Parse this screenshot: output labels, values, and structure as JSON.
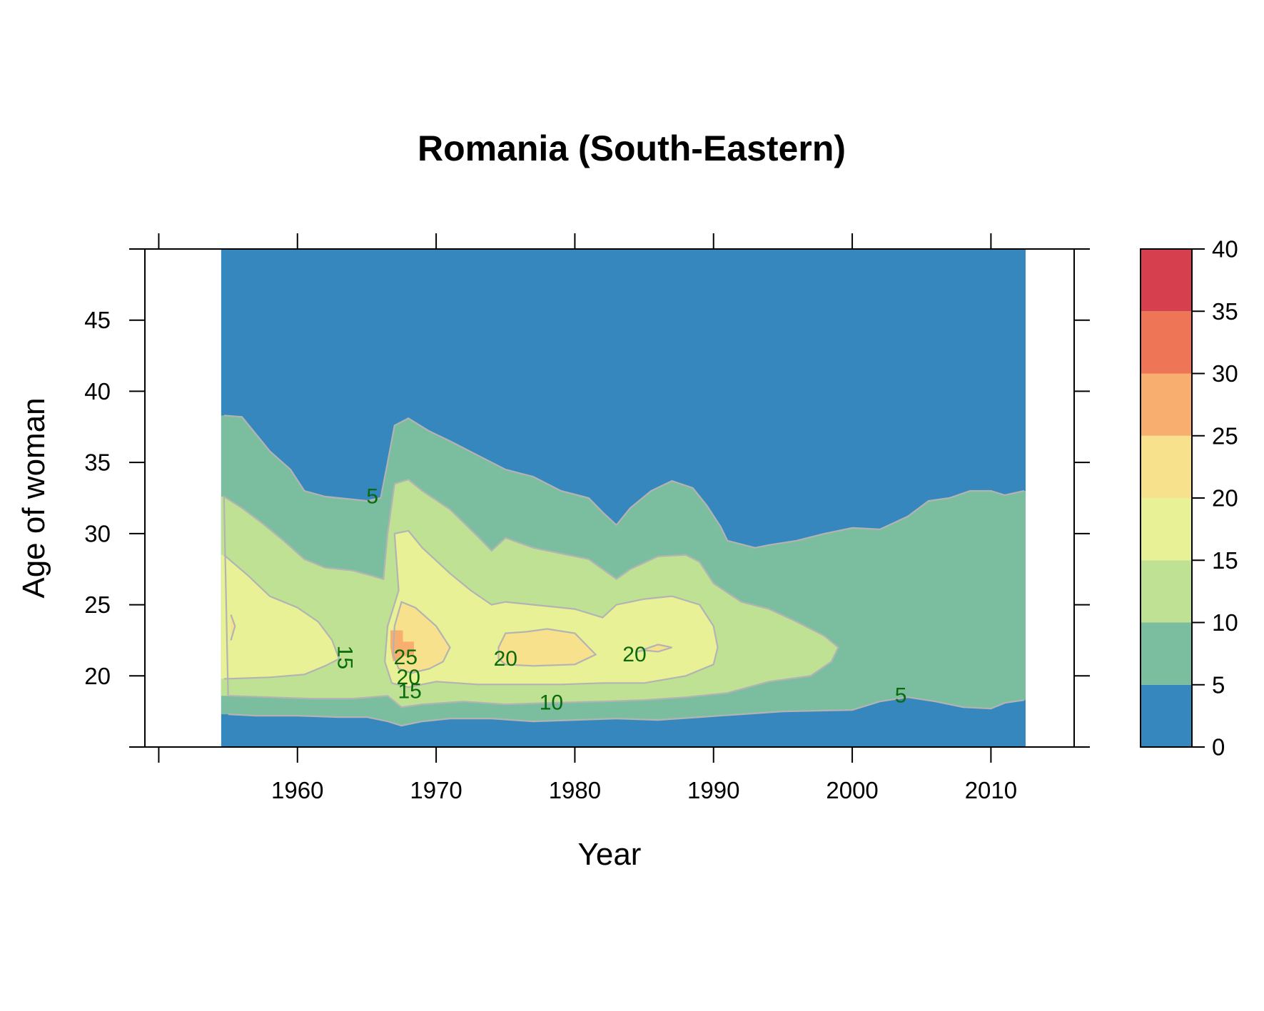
{
  "chart_data": {
    "type": "heatmap",
    "title": "Romania (South-Eastern)",
    "xlabel": "Year",
    "ylabel": "Age of woman",
    "xlim": [
      1949,
      2016
    ],
    "ylim": [
      15,
      50
    ],
    "x_ticks": [
      "1960",
      "1970",
      "1980",
      "1990",
      "2000",
      "2010"
    ],
    "y_ticks": [
      "20",
      "25",
      "30",
      "35",
      "40",
      "45"
    ],
    "colorbar": {
      "breaks": [
        0,
        5,
        10,
        15,
        20,
        25,
        30,
        35,
        40
      ],
      "tick_labels": [
        "0",
        "5",
        "10",
        "15",
        "20",
        "25",
        "30",
        "35",
        "40"
      ],
      "colors": [
        "#3587be",
        "#7bbe9f",
        "#bee194",
        "#e8f196",
        "#f8e18d",
        "#f7ae6e",
        "#ee7556",
        "#d53f4e"
      ]
    },
    "data_extent": {
      "year": [
        1954.5,
        2012.5
      ],
      "age": [
        15,
        50
      ]
    },
    "region_colors_note": "low/high values",
    "region_colors": {
      "background": "#3587be",
      "band_5": "#7bbe9f",
      "band_10": "#bee194",
      "band_15": "#e8f196",
      "band_20": "#f8e18d",
      "band_25": "#f7ae6e"
    },
    "contours": [
      {
        "level": 5,
        "points": [
          [
            1954.7,
            38.3
          ],
          [
            1956,
            38.2
          ],
          [
            1957,
            37
          ],
          [
            1958,
            35.8
          ],
          [
            1959.5,
            34.5
          ],
          [
            1960.5,
            33
          ],
          [
            1962,
            32.6
          ],
          [
            1964,
            32.4
          ],
          [
            1965,
            32.3
          ],
          [
            1966,
            32.5
          ],
          [
            1966.5,
            35
          ],
          [
            1967,
            37.6
          ],
          [
            1968,
            38.1
          ],
          [
            1969.5,
            37.2
          ],
          [
            1971,
            36.5
          ],
          [
            1973,
            35.5
          ],
          [
            1975,
            34.5
          ],
          [
            1977,
            34
          ],
          [
            1979,
            33
          ],
          [
            1981,
            32.5
          ],
          [
            1982,
            31.5
          ],
          [
            1983,
            30.6
          ],
          [
            1984,
            31.8
          ],
          [
            1985.5,
            33
          ],
          [
            1987,
            33.7
          ],
          [
            1988.5,
            33.2
          ],
          [
            1989.5,
            32
          ],
          [
            1990.5,
            30.5
          ],
          [
            1991,
            29.5
          ],
          [
            1993,
            29
          ],
          [
            1994,
            29.2
          ],
          [
            1996,
            29.5
          ],
          [
            1998,
            30
          ],
          [
            2000,
            30.4
          ],
          [
            2002,
            30.3
          ],
          [
            2004,
            31.2
          ],
          [
            2005.5,
            32.3
          ],
          [
            2007,
            32.5
          ],
          [
            2008.5,
            33
          ],
          [
            2010,
            33
          ],
          [
            2011,
            32.7
          ],
          [
            2012.4,
            33
          ]
        ]
      },
      {
        "level": 5,
        "points": [
          [
            1955,
            17.3
          ],
          [
            1957,
            17.2
          ],
          [
            1960,
            17.2
          ],
          [
            1963,
            17.1
          ],
          [
            1965,
            17.1
          ],
          [
            1966.5,
            16.8
          ],
          [
            1967.5,
            16.5
          ],
          [
            1969,
            16.8
          ],
          [
            1971,
            17
          ],
          [
            1974,
            17
          ],
          [
            1977,
            16.8
          ],
          [
            1980,
            16.9
          ],
          [
            1983,
            17
          ],
          [
            1986,
            16.9
          ],
          [
            1989,
            17.1
          ],
          [
            1992,
            17.3
          ],
          [
            1995,
            17.5
          ],
          [
            2000,
            17.6
          ],
          [
            2002,
            18.2
          ],
          [
            2004,
            18.5
          ],
          [
            2006,
            18.2
          ],
          [
            2008,
            17.8
          ],
          [
            2010,
            17.7
          ],
          [
            2011,
            18.1
          ],
          [
            2012.4,
            18.3
          ]
        ]
      },
      {
        "level": 10,
        "points": [
          [
            1954.7,
            32.6
          ],
          [
            1956,
            31.8
          ],
          [
            1957.5,
            30.7
          ],
          [
            1959,
            29.5
          ],
          [
            1960.5,
            28.2
          ],
          [
            1962,
            27.6
          ],
          [
            1964,
            27.4
          ],
          [
            1965.5,
            27
          ],
          [
            1966.2,
            26.8
          ],
          [
            1966.5,
            30
          ],
          [
            1967,
            33.5
          ],
          [
            1968,
            33.8
          ],
          [
            1969,
            33
          ],
          [
            1971,
            31.7
          ],
          [
            1973,
            29.8
          ],
          [
            1974,
            28.8
          ],
          [
            1975,
            29.7
          ],
          [
            1977,
            29
          ],
          [
            1979,
            28.6
          ],
          [
            1981,
            28.2
          ],
          [
            1982,
            27.5
          ],
          [
            1983,
            26.8
          ],
          [
            1984,
            27.5
          ],
          [
            1986,
            28.4
          ],
          [
            1988,
            28.5
          ],
          [
            1989,
            28
          ],
          [
            1990,
            26.5
          ],
          [
            1992,
            25.2
          ],
          [
            1994,
            24.7
          ],
          [
            1996,
            23.8
          ],
          [
            1998,
            22.8
          ],
          [
            1999,
            22
          ],
          [
            1998.5,
            21
          ],
          [
            1997,
            20
          ],
          [
            1994,
            19.6
          ],
          [
            1991,
            18.8
          ],
          [
            1988,
            18.5
          ],
          [
            1985,
            18.3
          ],
          [
            1982,
            18.2
          ],
          [
            1978,
            18.1
          ],
          [
            1975,
            18
          ],
          [
            1972,
            18.2
          ],
          [
            1969,
            18
          ],
          [
            1967.5,
            17.8
          ],
          [
            1966.5,
            18.6
          ],
          [
            1964,
            18.4
          ],
          [
            1961,
            18.4
          ],
          [
            1958,
            18.5
          ],
          [
            1955,
            18.6
          ]
        ]
      },
      {
        "level": 15,
        "points": [
          [
            1954.7,
            28.5
          ],
          [
            1956.5,
            27
          ],
          [
            1958,
            25.6
          ],
          [
            1960,
            24.8
          ],
          [
            1961.5,
            23.8
          ],
          [
            1962.5,
            22.5
          ],
          [
            1963,
            21.2
          ],
          [
            1962,
            20.7
          ],
          [
            1960.5,
            20.1
          ],
          [
            1958,
            19.9
          ],
          [
            1955,
            19.8
          ],
          [
            1954.7,
            19.8
          ]
        ]
      },
      {
        "level": 15,
        "points": [
          [
            1967.3,
            26
          ],
          [
            1967,
            30
          ],
          [
            1968,
            30.2
          ],
          [
            1969,
            29
          ],
          [
            1971,
            27.2
          ],
          [
            1972.5,
            26
          ],
          [
            1974,
            25
          ],
          [
            1975,
            25.2
          ],
          [
            1977,
            25
          ],
          [
            1980,
            24.7
          ],
          [
            1982,
            24.1
          ],
          [
            1983,
            25
          ],
          [
            1985,
            25.4
          ],
          [
            1987,
            25.6
          ],
          [
            1989,
            25
          ],
          [
            1990,
            23.5
          ],
          [
            1990.3,
            22
          ],
          [
            1990,
            20.8
          ],
          [
            1988,
            20
          ],
          [
            1985,
            19.5
          ],
          [
            1982,
            19.5
          ],
          [
            1979,
            19.4
          ],
          [
            1976,
            19.4
          ],
          [
            1973,
            19.4
          ],
          [
            1970,
            19.6
          ],
          [
            1968,
            19.2
          ],
          [
            1966.8,
            19.5
          ],
          [
            1966.3,
            21
          ],
          [
            1966.5,
            23.5
          ]
        ]
      },
      {
        "level": 20,
        "points": [
          [
            1967.5,
            25.2
          ],
          [
            1968.5,
            24.8
          ],
          [
            1970,
            23.5
          ],
          [
            1971,
            22
          ],
          [
            1970.5,
            21
          ],
          [
            1969.5,
            20.5
          ],
          [
            1968.2,
            20.2
          ],
          [
            1967.3,
            20.5
          ],
          [
            1966.9,
            21.5
          ],
          [
            1967,
            23.5
          ]
        ]
      },
      {
        "level": 20,
        "points": [
          [
            1974.5,
            22
          ],
          [
            1975,
            23
          ],
          [
            1976.5,
            23.1
          ],
          [
            1978,
            23.3
          ],
          [
            1980,
            23
          ],
          [
            1981.5,
            21.5
          ],
          [
            1980,
            20.8
          ],
          [
            1977,
            20.7
          ],
          [
            1975,
            20.8
          ],
          [
            1974.5,
            21.2
          ]
        ]
      },
      {
        "level": 20,
        "points": [
          [
            1984.5,
            21.7
          ],
          [
            1986,
            22.2
          ],
          [
            1987,
            22
          ],
          [
            1986,
            21.7
          ],
          [
            1985,
            21.8
          ]
        ]
      },
      {
        "level": 20,
        "points": [
          [
            1955.2,
            24.3
          ],
          [
            1955.5,
            23.5
          ],
          [
            1955.2,
            22.5
          ]
        ]
      }
    ],
    "contour_labels": [
      {
        "text": "5",
        "x": 1965.4,
        "y": 32.6,
        "angle": 0
      },
      {
        "text": "15",
        "x": 1963.4,
        "y": 21.3,
        "angle": 90
      },
      {
        "text": "25",
        "x": 1967.8,
        "y": 21.3,
        "angle": 0
      },
      {
        "text": "20",
        "x": 1968.0,
        "y": 19.9,
        "angle": 0
      },
      {
        "text": "15",
        "x": 1968.1,
        "y": 18.9,
        "angle": 0
      },
      {
        "text": "10",
        "x": 1978.3,
        "y": 18.1,
        "angle": 0
      },
      {
        "text": "20",
        "x": 1975.0,
        "y": 21.2,
        "angle": 0
      },
      {
        "text": "20",
        "x": 1984.3,
        "y": 21.5,
        "angle": 0
      },
      {
        "text": "5",
        "x": 2003.5,
        "y": 18.6,
        "angle": 0
      }
    ]
  }
}
